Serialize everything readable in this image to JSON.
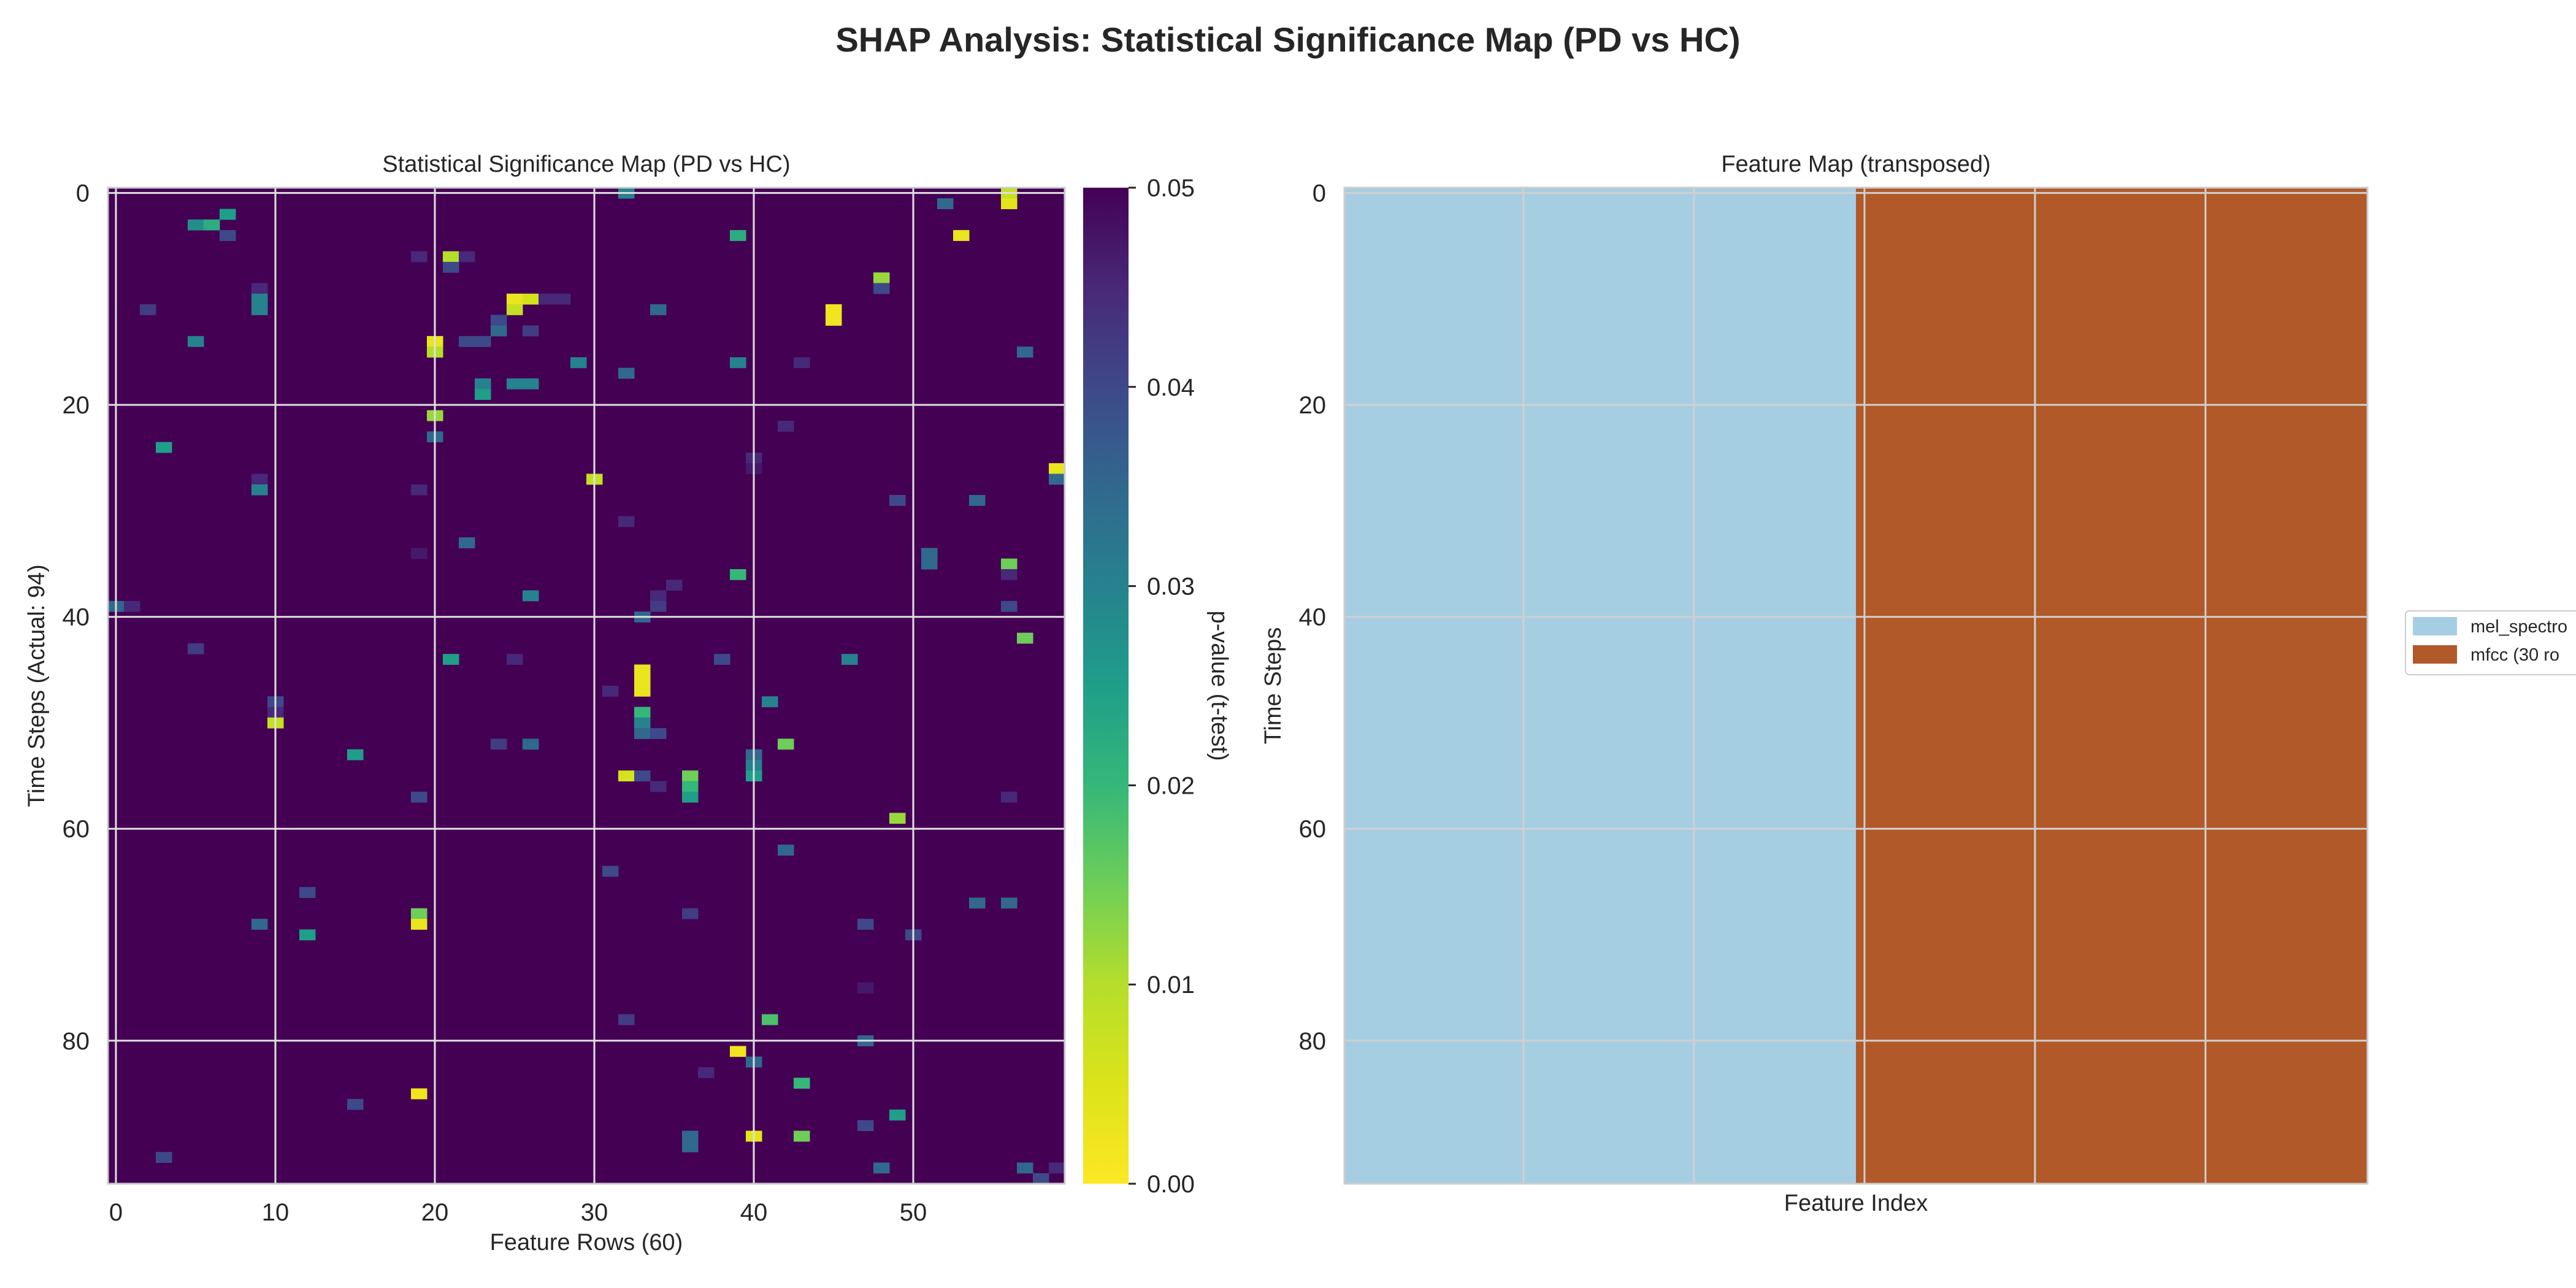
{
  "figure": {
    "suptitle": "SHAP Analysis: Statistical Significance Map (PD vs HC)"
  },
  "chart_data": [
    {
      "type": "heatmap",
      "title": "Statistical Significance Map (PD vs HC)",
      "xlabel": "Feature Rows (60)",
      "ylabel": "Time Steps (Actual: 94)",
      "n_cols": 60,
      "n_rows": 94,
      "xlim": [
        -0.5,
        59.5
      ],
      "ylim": [
        93.5,
        -0.5
      ],
      "xticks": [
        0,
        10,
        20,
        30,
        40,
        50
      ],
      "yticks": [
        0,
        20,
        40,
        60,
        80
      ],
      "grid": true,
      "background_value": 0.05,
      "colormap": "viridis_r",
      "colors": {
        "background": "#440154",
        "low_p": "#fde725"
      },
      "colorbar": {
        "label": "p-value (t-test)",
        "range": [
          0.0,
          0.05
        ],
        "ticks": [
          "0.00",
          "0.01",
          "0.02",
          "0.03",
          "0.04",
          "0.05"
        ]
      },
      "cells": [
        [
          0,
          32,
          0.03
        ],
        [
          0,
          56,
          0.008
        ],
        [
          1,
          56,
          0.004
        ],
        [
          1,
          52,
          0.035
        ],
        [
          2,
          7,
          0.025
        ],
        [
          3,
          5,
          0.028
        ],
        [
          3,
          6,
          0.022
        ],
        [
          4,
          7,
          0.04
        ],
        [
          4,
          39,
          0.022
        ],
        [
          4,
          53,
          0.003
        ],
        [
          6,
          19,
          0.045
        ],
        [
          6,
          21,
          0.01
        ],
        [
          6,
          22,
          0.045
        ],
        [
          7,
          21,
          0.04
        ],
        [
          8,
          48,
          0.012
        ],
        [
          9,
          9,
          0.045
        ],
        [
          9,
          48,
          0.04
        ],
        [
          10,
          9,
          0.03
        ],
        [
          10,
          25,
          0.003
        ],
        [
          10,
          26,
          0.006
        ],
        [
          10,
          27,
          0.045
        ],
        [
          10,
          28,
          0.045
        ],
        [
          11,
          2,
          0.042
        ],
        [
          11,
          9,
          0.03
        ],
        [
          11,
          25,
          0.008
        ],
        [
          11,
          34,
          0.035
        ],
        [
          11,
          45,
          0.002
        ],
        [
          12,
          45,
          0.002
        ],
        [
          12,
          24,
          0.04
        ],
        [
          13,
          24,
          0.035
        ],
        [
          13,
          26,
          0.042
        ],
        [
          14,
          5,
          0.03
        ],
        [
          14,
          20,
          0.003
        ],
        [
          14,
          22,
          0.04
        ],
        [
          14,
          23,
          0.04
        ],
        [
          15,
          20,
          0.01
        ],
        [
          15,
          57,
          0.035
        ],
        [
          16,
          29,
          0.03
        ],
        [
          16,
          39,
          0.03
        ],
        [
          16,
          43,
          0.045
        ],
        [
          17,
          32,
          0.035
        ],
        [
          18,
          23,
          0.03
        ],
        [
          18,
          25,
          0.03
        ],
        [
          18,
          26,
          0.03
        ],
        [
          19,
          23,
          0.025
        ],
        [
          21,
          20,
          0.012
        ],
        [
          22,
          42,
          0.045
        ],
        [
          23,
          20,
          0.035
        ],
        [
          24,
          3,
          0.025
        ],
        [
          25,
          40,
          0.045
        ],
        [
          26,
          40,
          0.047
        ],
        [
          26,
          59,
          0.003
        ],
        [
          27,
          30,
          0.008
        ],
        [
          27,
          9,
          0.045
        ],
        [
          27,
          59,
          0.035
        ],
        [
          28,
          9,
          0.03
        ],
        [
          28,
          19,
          0.045
        ],
        [
          29,
          49,
          0.04
        ],
        [
          29,
          54,
          0.035
        ],
        [
          31,
          32,
          0.045
        ],
        [
          33,
          22,
          0.035
        ],
        [
          34,
          19,
          0.047
        ],
        [
          34,
          51,
          0.035
        ],
        [
          35,
          51,
          0.035
        ],
        [
          35,
          56,
          0.015
        ],
        [
          36,
          39,
          0.02
        ],
        [
          36,
          56,
          0.045
        ],
        [
          37,
          35,
          0.045
        ],
        [
          38,
          26,
          0.03
        ],
        [
          38,
          34,
          0.045
        ],
        [
          39,
          0,
          0.035
        ],
        [
          39,
          1,
          0.045
        ],
        [
          39,
          56,
          0.04
        ],
        [
          39,
          34,
          0.042
        ],
        [
          40,
          33,
          0.035
        ],
        [
          42,
          57,
          0.015
        ],
        [
          43,
          5,
          0.042
        ],
        [
          44,
          21,
          0.025
        ],
        [
          44,
          25,
          0.045
        ],
        [
          44,
          38,
          0.04
        ],
        [
          44,
          46,
          0.03
        ],
        [
          45,
          33,
          0.003
        ],
        [
          46,
          33,
          0.003
        ],
        [
          47,
          31,
          0.045
        ],
        [
          47,
          33,
          0.003
        ],
        [
          48,
          10,
          0.04
        ],
        [
          48,
          41,
          0.03
        ],
        [
          49,
          10,
          0.045
        ],
        [
          49,
          33,
          0.02
        ],
        [
          50,
          10,
          0.008
        ],
        [
          50,
          33,
          0.03
        ],
        [
          51,
          33,
          0.035
        ],
        [
          51,
          34,
          0.04
        ],
        [
          52,
          24,
          0.042
        ],
        [
          52,
          26,
          0.035
        ],
        [
          52,
          42,
          0.015
        ],
        [
          53,
          15,
          0.025
        ],
        [
          53,
          40,
          0.035
        ],
        [
          54,
          40,
          0.03
        ],
        [
          55,
          32,
          0.006
        ],
        [
          55,
          33,
          0.04
        ],
        [
          55,
          36,
          0.015
        ],
        [
          55,
          40,
          0.025
        ],
        [
          56,
          36,
          0.02
        ],
        [
          56,
          34,
          0.045
        ],
        [
          57,
          36,
          0.025
        ],
        [
          57,
          19,
          0.04
        ],
        [
          57,
          56,
          0.045
        ],
        [
          59,
          49,
          0.012
        ],
        [
          62,
          42,
          0.035
        ],
        [
          64,
          31,
          0.04
        ],
        [
          66,
          12,
          0.04
        ],
        [
          67,
          54,
          0.035
        ],
        [
          67,
          56,
          0.035
        ],
        [
          68,
          19,
          0.015
        ],
        [
          68,
          36,
          0.042
        ],
        [
          69,
          9,
          0.035
        ],
        [
          69,
          19,
          0.003
        ],
        [
          69,
          47,
          0.04
        ],
        [
          70,
          12,
          0.025
        ],
        [
          70,
          50,
          0.04
        ],
        [
          75,
          47,
          0.047
        ],
        [
          78,
          32,
          0.042
        ],
        [
          78,
          41,
          0.018
        ],
        [
          80,
          47,
          0.035
        ],
        [
          81,
          39,
          0.002
        ],
        [
          82,
          40,
          0.035
        ],
        [
          83,
          37,
          0.045
        ],
        [
          84,
          43,
          0.02
        ],
        [
          85,
          19,
          0.002
        ],
        [
          86,
          15,
          0.04
        ],
        [
          87,
          49,
          0.025
        ],
        [
          88,
          47,
          0.04
        ],
        [
          89,
          36,
          0.035
        ],
        [
          89,
          40,
          0.004
        ],
        [
          89,
          43,
          0.015
        ],
        [
          90,
          36,
          0.035
        ],
        [
          91,
          3,
          0.04
        ],
        [
          92,
          48,
          0.035
        ],
        [
          92,
          57,
          0.035
        ],
        [
          93,
          58,
          0.04
        ],
        [
          92,
          59,
          0.045
        ]
      ]
    },
    {
      "type": "heatmap",
      "title": "Feature Map (transposed)",
      "xlabel": "Feature Index",
      "ylabel": "Time Steps",
      "n_cols": 60,
      "n_rows": 94,
      "xlim": [
        -0.5,
        59.5
      ],
      "ylim": [
        93.5,
        -0.5
      ],
      "yticks": [
        0,
        20,
        40,
        60,
        80
      ],
      "xticks": [],
      "grid": true,
      "regions": [
        {
          "name": "mel_spectro",
          "col_start": 0,
          "col_end": 29,
          "color": "#a6cee3"
        },
        {
          "name": "mfcc (30 ro",
          "col_start": 30,
          "col_end": 59,
          "color": "#b15928"
        }
      ],
      "legend": {
        "placement": "right",
        "entries": [
          "mel_spectro",
          "mfcc (30 ro"
        ]
      }
    }
  ]
}
